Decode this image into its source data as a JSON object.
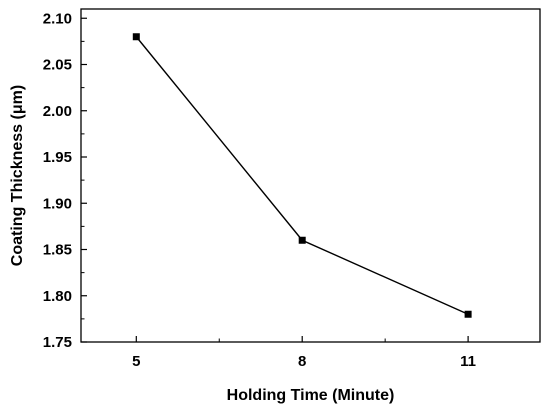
{
  "chart_data": {
    "type": "line",
    "title": "",
    "xlabel": "Holding Time (Minute)",
    "ylabel": "Coating Thickness (μm)",
    "x": [
      5,
      8,
      11
    ],
    "x_tick_labels": [
      "5",
      "8",
      "11"
    ],
    "series": [
      {
        "values": [
          2.08,
          1.86,
          1.78
        ]
      }
    ],
    "xlim": [
      4,
      12.3
    ],
    "ylim": [
      1.75,
      2.11
    ],
    "y_ticks": [
      1.75,
      1.8,
      1.85,
      1.9,
      1.95,
      2.0,
      2.05,
      2.1
    ],
    "y_tick_labels": [
      "1.75",
      "1.80",
      "1.85",
      "1.90",
      "1.95",
      "2.00",
      "2.05",
      "2.10"
    ],
    "marker": "square",
    "line_color": "#000000",
    "grid": false,
    "legend": "none"
  }
}
